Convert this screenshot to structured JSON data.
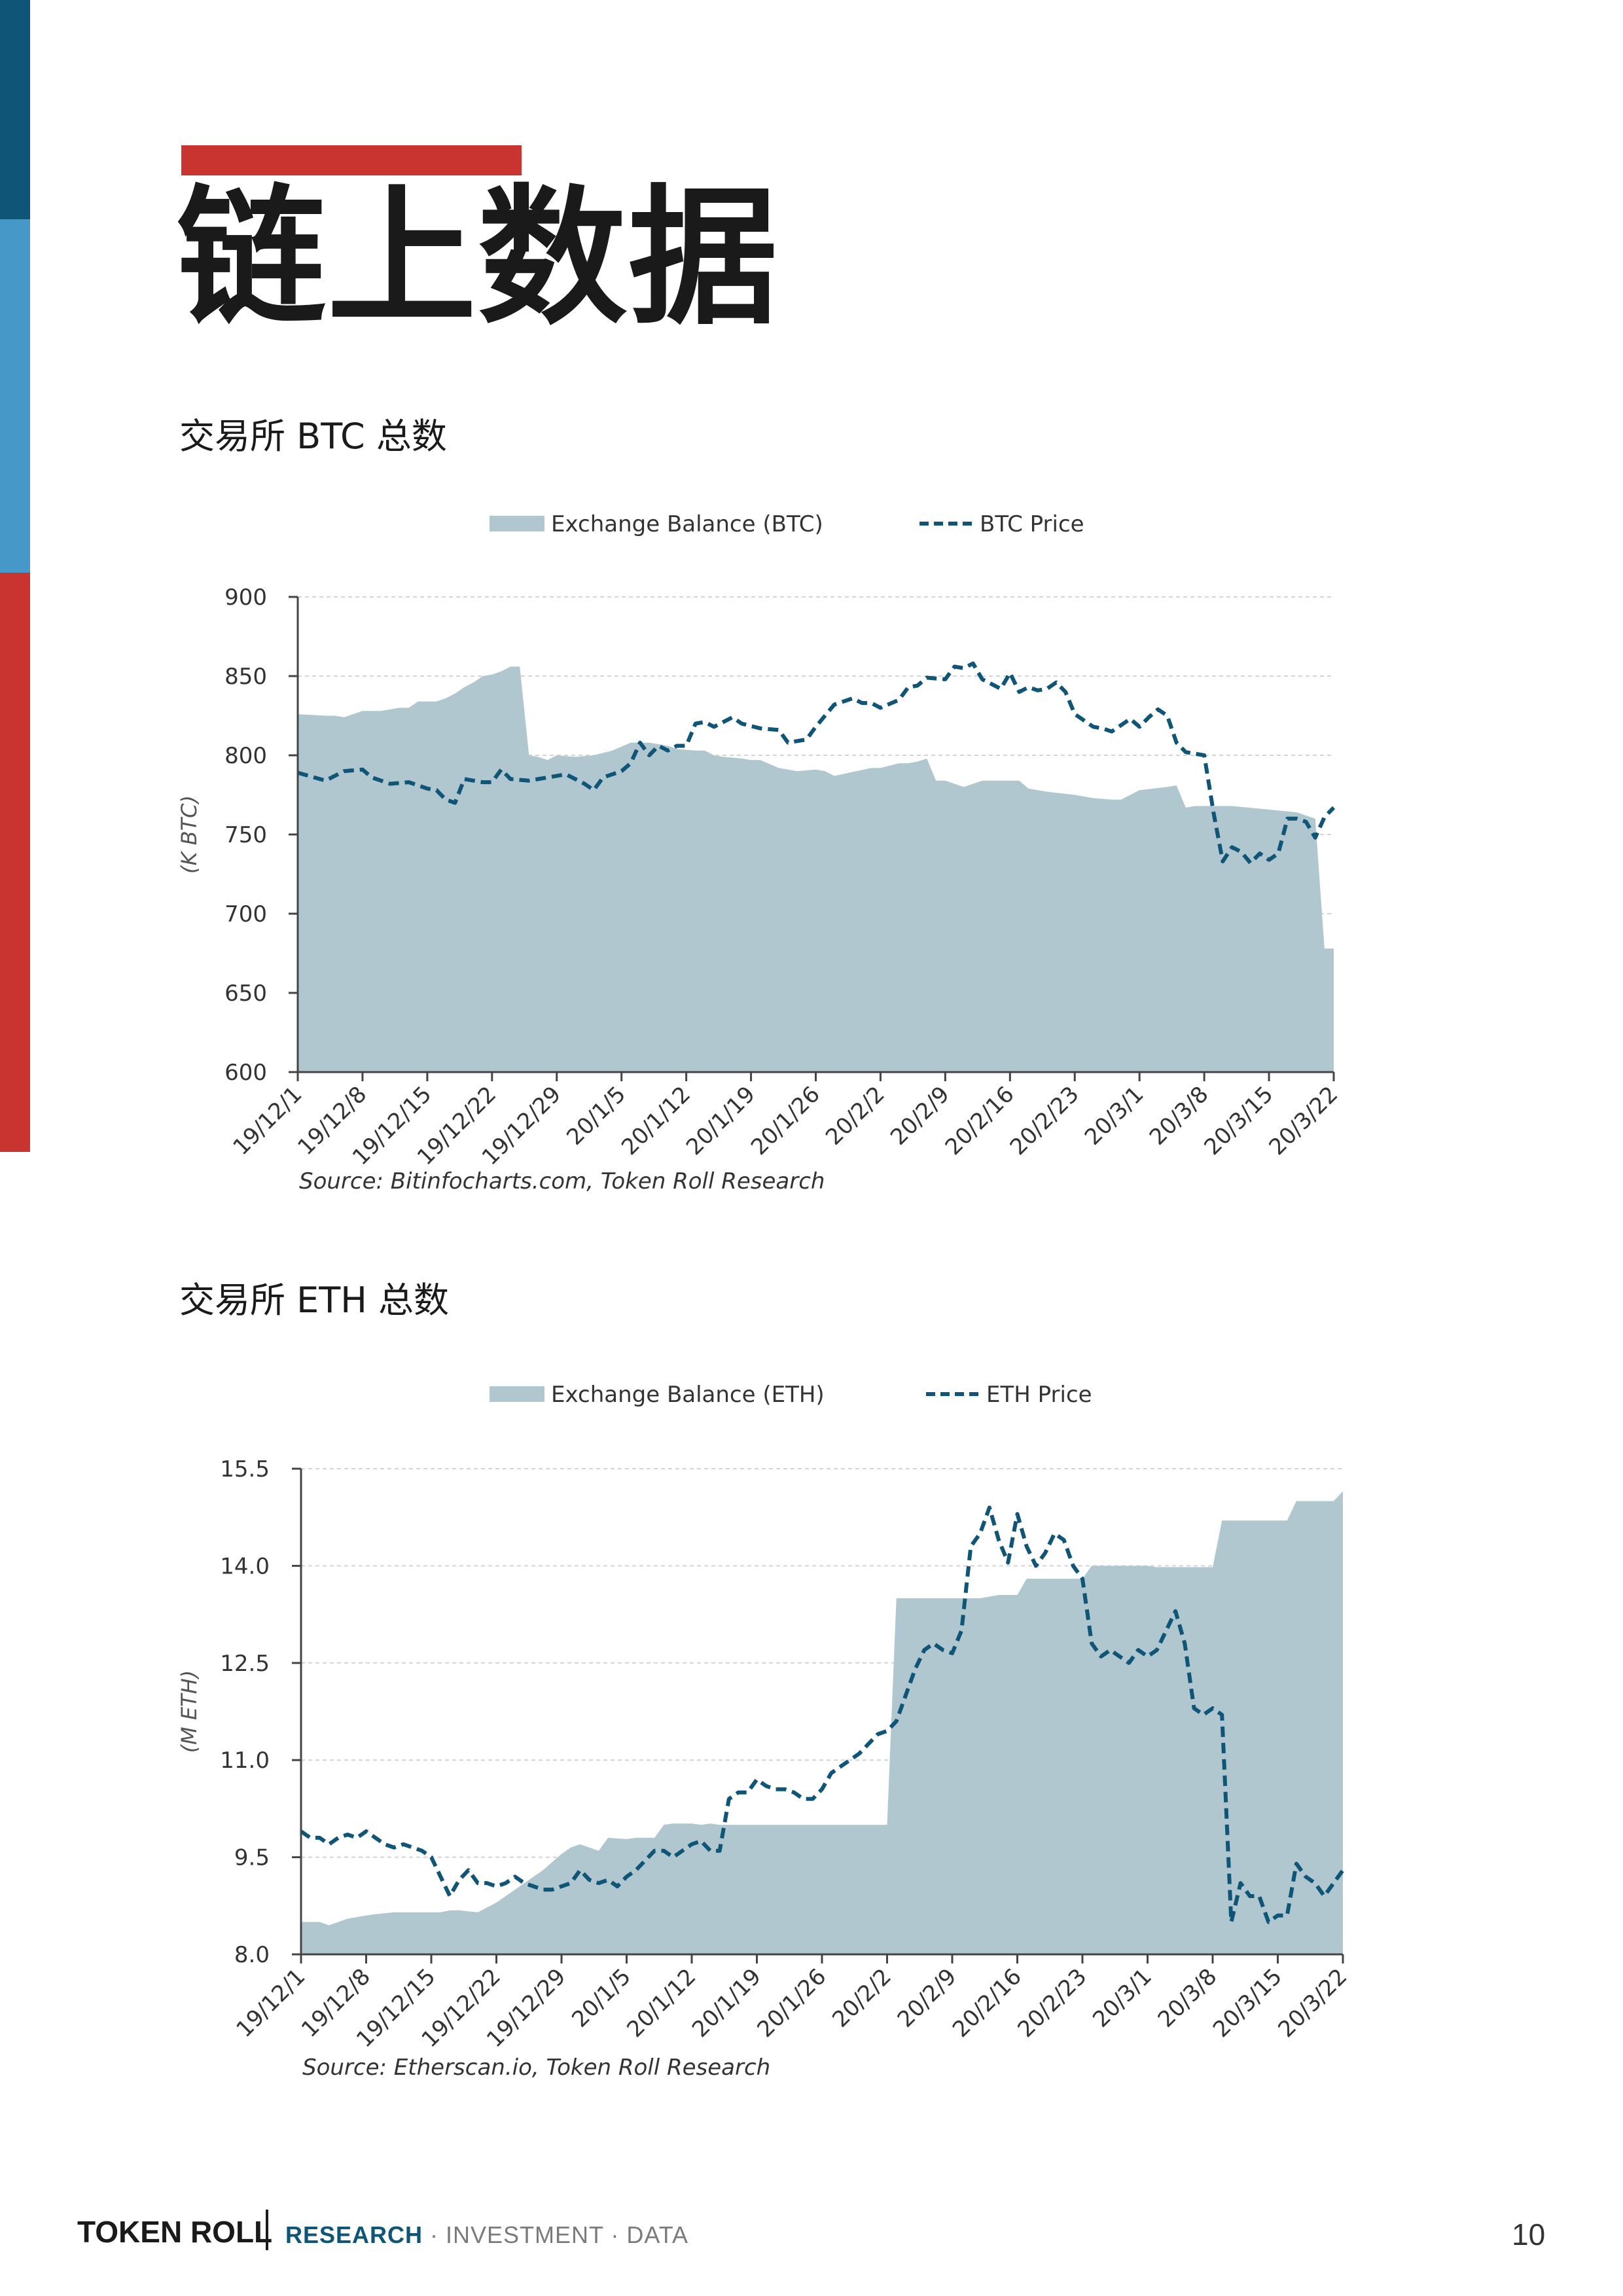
{
  "page": {
    "title": "链上数据",
    "page_number": "10",
    "footer": {
      "brand": "TOKEN ROLL",
      "tag_highlight": "RESEARCH",
      "tag_rest": " · INVESTMENT · DATA"
    },
    "colors": {
      "accent_red": "#c93431",
      "navy": "#0f5577",
      "light_blue": "#4598c8",
      "area_fill": "#b0c7d0",
      "price_line": "#0f5577"
    }
  },
  "chart_data": [
    {
      "heading": "交易所 BTC 总数",
      "type": "area",
      "ylabel": "(K BTC)",
      "ylim": [
        600,
        900
      ],
      "yticks": [
        600,
        650,
        700,
        750,
        800,
        850,
        900
      ],
      "xlim": [
        0,
        112
      ],
      "categories": [
        "19/12/1",
        "19/12/8",
        "19/12/15",
        "19/12/22",
        "19/12/29",
        "20/1/5",
        "20/1/12",
        "20/1/19",
        "20/1/26",
        "20/2/2",
        "20/2/9",
        "20/2/16",
        "20/2/23",
        "20/3/1",
        "20/3/8",
        "20/3/15",
        "20/3/22"
      ],
      "category_days": [
        0,
        7,
        14,
        21,
        28,
        35,
        42,
        49,
        56,
        63,
        70,
        77,
        84,
        91,
        98,
        105,
        112
      ],
      "grid": true,
      "legend": "top",
      "source": "Source: Bitinfocharts.com, Token Roll Research",
      "series": [
        {
          "name": "Exchange Balance (BTC)",
          "kind": "area",
          "x": [
            0,
            3,
            4,
            5,
            7,
            9,
            11,
            12,
            13,
            15,
            16,
            17,
            18,
            19,
            20,
            21,
            22,
            23,
            24,
            25,
            26,
            27,
            28,
            30,
            32,
            34,
            36,
            38,
            40,
            41,
            43,
            44,
            45,
            46,
            48,
            49,
            50,
            52,
            54,
            56,
            57,
            58,
            62,
            63,
            65,
            66,
            67,
            68,
            69,
            70,
            72,
            74,
            78,
            79,
            81,
            84,
            86,
            88,
            89,
            91,
            94,
            95,
            96,
            97,
            100,
            101,
            108,
            109,
            110,
            111,
            112
          ],
          "y": [
            826,
            825,
            825,
            824,
            828,
            828,
            830,
            830,
            834,
            834,
            836,
            839,
            843,
            846,
            850,
            851,
            853,
            856,
            856,
            800,
            799,
            797,
            800,
            799,
            800,
            803,
            808,
            808,
            806,
            804,
            803,
            803,
            800,
            799,
            798,
            797,
            797,
            792,
            790,
            791,
            790,
            787,
            792,
            792,
            795,
            795,
            796,
            798,
            784,
            784,
            780,
            784,
            784,
            779,
            777,
            775,
            773,
            772,
            772,
            778,
            780,
            781,
            767,
            768,
            768,
            768,
            764,
            762,
            760,
            678,
            678
          ]
        },
        {
          "name": "BTC Price",
          "kind": "line",
          "x": [
            0,
            3,
            5,
            7,
            8,
            10,
            12,
            14,
            15,
            16,
            17,
            18,
            20,
            21,
            22,
            23,
            25,
            27,
            29,
            31,
            32,
            33,
            34,
            35,
            36,
            37,
            38,
            39,
            40,
            41,
            42,
            43,
            44,
            45,
            47,
            48,
            50,
            52,
            53,
            55,
            56,
            57,
            58,
            60,
            61,
            62,
            63,
            65,
            66,
            67,
            68,
            70,
            71,
            72,
            73,
            74,
            75,
            76,
            77,
            78,
            79,
            80,
            81,
            82,
            83,
            84,
            85,
            86,
            87,
            88,
            90,
            91,
            92,
            93,
            94,
            95,
            96,
            97,
            98,
            99,
            100,
            101,
            102,
            103,
            104,
            105,
            106,
            107,
            108,
            109,
            110,
            111,
            112
          ],
          "y": [
            789,
            784,
            790,
            791,
            786,
            782,
            783,
            779,
            778,
            772,
            770,
            785,
            783,
            783,
            791,
            785,
            784,
            786,
            788,
            782,
            778,
            786,
            788,
            790,
            795,
            808,
            800,
            806,
            803,
            806,
            806,
            820,
            821,
            818,
            824,
            820,
            817,
            816,
            808,
            810,
            818,
            825,
            832,
            836,
            833,
            833,
            830,
            835,
            843,
            844,
            849,
            848,
            856,
            855,
            858,
            848,
            845,
            842,
            852,
            840,
            843,
            841,
            842,
            846,
            840,
            826,
            822,
            818,
            817,
            815,
            823,
            818,
            824,
            829,
            825,
            808,
            802,
            801,
            800,
            764,
            733,
            742,
            739,
            732,
            738,
            734,
            738,
            760,
            760,
            758,
            748,
            761,
            767
          ]
        }
      ]
    },
    {
      "heading": "交易所 ETH 总数",
      "type": "area",
      "ylabel": "(M ETH)",
      "ylim": [
        8.0,
        15.5
      ],
      "yticks": [
        8.0,
        9.5,
        11.0,
        12.5,
        14.0,
        15.5
      ],
      "ytick_labels": [
        "8.0",
        "9.5",
        "11.0",
        "12.5",
        "14.0",
        "15.5"
      ],
      "xlim": [
        0,
        112
      ],
      "categories": [
        "19/12/1",
        "19/12/8",
        "19/12/15",
        "19/12/22",
        "19/12/29",
        "20/1/5",
        "20/1/12",
        "20/1/19",
        "20/1/26",
        "20/2/2",
        "20/2/9",
        "20/2/16",
        "20/2/23",
        "20/3/1",
        "20/3/8",
        "20/3/15",
        "20/3/22"
      ],
      "category_days": [
        0,
        7,
        14,
        21,
        28,
        35,
        42,
        49,
        56,
        63,
        70,
        77,
        84,
        91,
        98,
        105,
        112
      ],
      "grid": true,
      "legend": "top",
      "source": "Source: Etherscan.io, Token Roll Research",
      "series": [
        {
          "name": "Exchange Balance (ETH)",
          "kind": "area",
          "x": [
            0,
            2,
            3,
            5,
            7,
            8,
            10,
            12,
            13,
            14,
            15,
            16,
            17,
            19,
            21,
            23,
            24,
            25,
            26,
            28,
            29,
            30,
            32,
            33,
            35,
            36,
            38,
            39,
            40,
            42,
            43,
            44,
            45,
            48,
            49,
            50,
            52,
            54,
            56,
            58,
            60,
            61,
            62,
            63,
            64,
            65,
            66,
            67,
            68,
            70,
            73,
            75,
            77,
            78,
            82,
            84,
            85,
            86,
            88,
            90,
            91,
            92,
            94,
            96,
            97,
            98,
            99,
            100,
            104,
            105,
            106,
            107,
            110,
            111,
            112
          ],
          "y": [
            8.5,
            8.5,
            8.45,
            8.55,
            8.6,
            8.62,
            8.65,
            8.65,
            8.65,
            8.65,
            8.65,
            8.68,
            8.68,
            8.65,
            8.8,
            9.0,
            9.1,
            9.2,
            9.3,
            9.55,
            9.65,
            9.7,
            9.6,
            9.8,
            9.78,
            9.8,
            9.8,
            10.0,
            10.02,
            10.02,
            10.0,
            10.02,
            10.0,
            10.0,
            10.0,
            10.0,
            10.0,
            10.0,
            10.0,
            10.0,
            10.0,
            10.0,
            10.0,
            10.0,
            13.5,
            13.5,
            13.5,
            13.5,
            13.5,
            13.5,
            13.5,
            13.55,
            13.55,
            13.8,
            13.8,
            13.8,
            14.0,
            14.0,
            14.0,
            14.0,
            14.0,
            13.98,
            13.98,
            13.98,
            13.98,
            13.98,
            14.7,
            14.7,
            14.7,
            14.7,
            14.7,
            15.0,
            15.0,
            15.0,
            15.15
          ]
        },
        {
          "name": "ETH Price",
          "kind": "line",
          "x": [
            0,
            1,
            2,
            3,
            4,
            5,
            6,
            7,
            8,
            9,
            10,
            11,
            12,
            13,
            14,
            15,
            16,
            17,
            18,
            19,
            20,
            21,
            22,
            23,
            24,
            25,
            26,
            27,
            28,
            29,
            30,
            31,
            32,
            33,
            34,
            35,
            36,
            37,
            38,
            39,
            40,
            41,
            42,
            43,
            44,
            45,
            46,
            47,
            48,
            49,
            50,
            51,
            52,
            53,
            54,
            55,
            56,
            57,
            58,
            59,
            60,
            61,
            62,
            63,
            64,
            65,
            66,
            67,
            68,
            69,
            70,
            71,
            72,
            73,
            74,
            75,
            76,
            77,
            78,
            79,
            80,
            81,
            82,
            83,
            84,
            85,
            86,
            87,
            88,
            89,
            90,
            91,
            92,
            93,
            94,
            95,
            96,
            97,
            98,
            99,
            100,
            101,
            102,
            103,
            104,
            105,
            106,
            107,
            108,
            109,
            110,
            111,
            112
          ],
          "y": [
            9.9,
            9.8,
            9.8,
            9.7,
            9.8,
            9.85,
            9.8,
            9.9,
            9.8,
            9.7,
            9.65,
            9.7,
            9.65,
            9.6,
            9.5,
            9.2,
            8.9,
            9.15,
            9.3,
            9.1,
            9.1,
            9.05,
            9.1,
            9.2,
            9.1,
            9.05,
            9.0,
            9.0,
            9.05,
            9.1,
            9.3,
            9.15,
            9.1,
            9.15,
            9.05,
            9.2,
            9.3,
            9.45,
            9.6,
            9.6,
            9.5,
            9.6,
            9.7,
            9.75,
            9.6,
            9.6,
            10.4,
            10.5,
            10.5,
            10.7,
            10.6,
            10.55,
            10.55,
            10.5,
            10.4,
            10.4,
            10.55,
            10.8,
            10.9,
            11.0,
            11.1,
            11.25,
            11.4,
            11.45,
            11.6,
            12.0,
            12.4,
            12.7,
            12.8,
            12.7,
            12.65,
            13.0,
            14.3,
            14.5,
            14.9,
            14.4,
            14.05,
            14.8,
            14.3,
            14.0,
            14.2,
            14.5,
            14.4,
            14.0,
            13.8,
            12.8,
            12.6,
            12.7,
            12.6,
            12.5,
            12.7,
            12.6,
            12.7,
            13.0,
            13.3,
            12.8,
            11.8,
            11.7,
            11.8,
            11.7,
            8.5,
            9.1,
            8.9,
            8.9,
            8.5,
            8.6,
            8.6,
            9.4,
            9.2,
            9.1,
            8.9,
            9.1,
            9.3
          ]
        }
      ]
    }
  ]
}
